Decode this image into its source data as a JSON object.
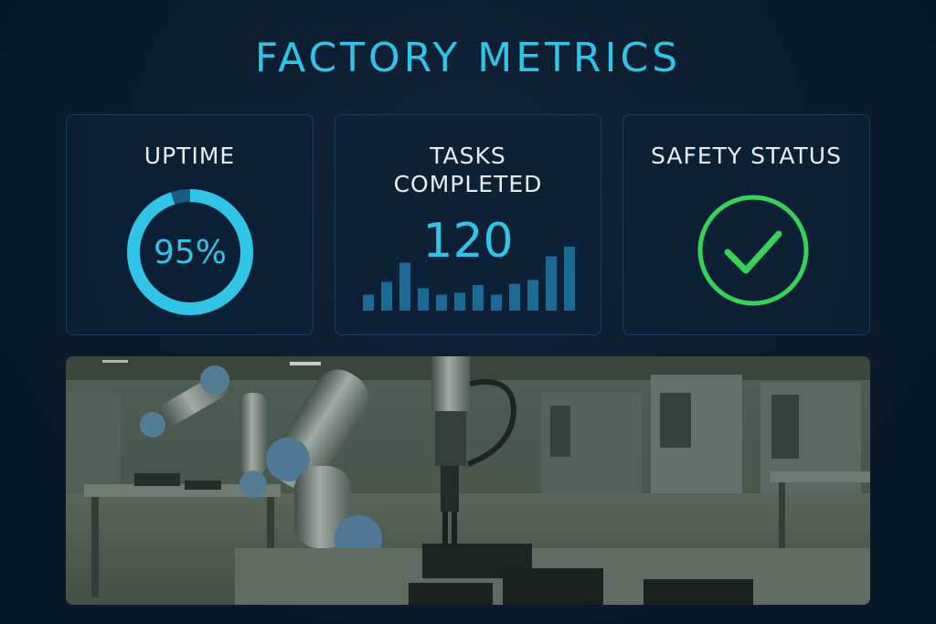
{
  "header": {
    "title": "FACTORY METRICS"
  },
  "cards": {
    "uptime": {
      "label": "UPTIME",
      "value_text": "95%",
      "progress": 0.95
    },
    "tasks": {
      "label_line1": "TASKS",
      "label_line2": "COMPLETED",
      "value": "120",
      "trend": [
        0.25,
        0.45,
        0.75,
        0.35,
        0.25,
        0.28,
        0.4,
        0.25,
        0.42,
        0.48,
        0.85,
        1.0
      ]
    },
    "safety": {
      "label": "SAFETY STATUS",
      "icon": "checkmark-icon",
      "status_color": "#36d35a"
    }
  },
  "colors": {
    "accent": "#2ec5e6",
    "accent_dark": "#1b5d82",
    "bar": "#1b6a93",
    "ok_green": "#36d35a"
  },
  "photo": {
    "subject": "robotic-arm-factory-floor"
  }
}
